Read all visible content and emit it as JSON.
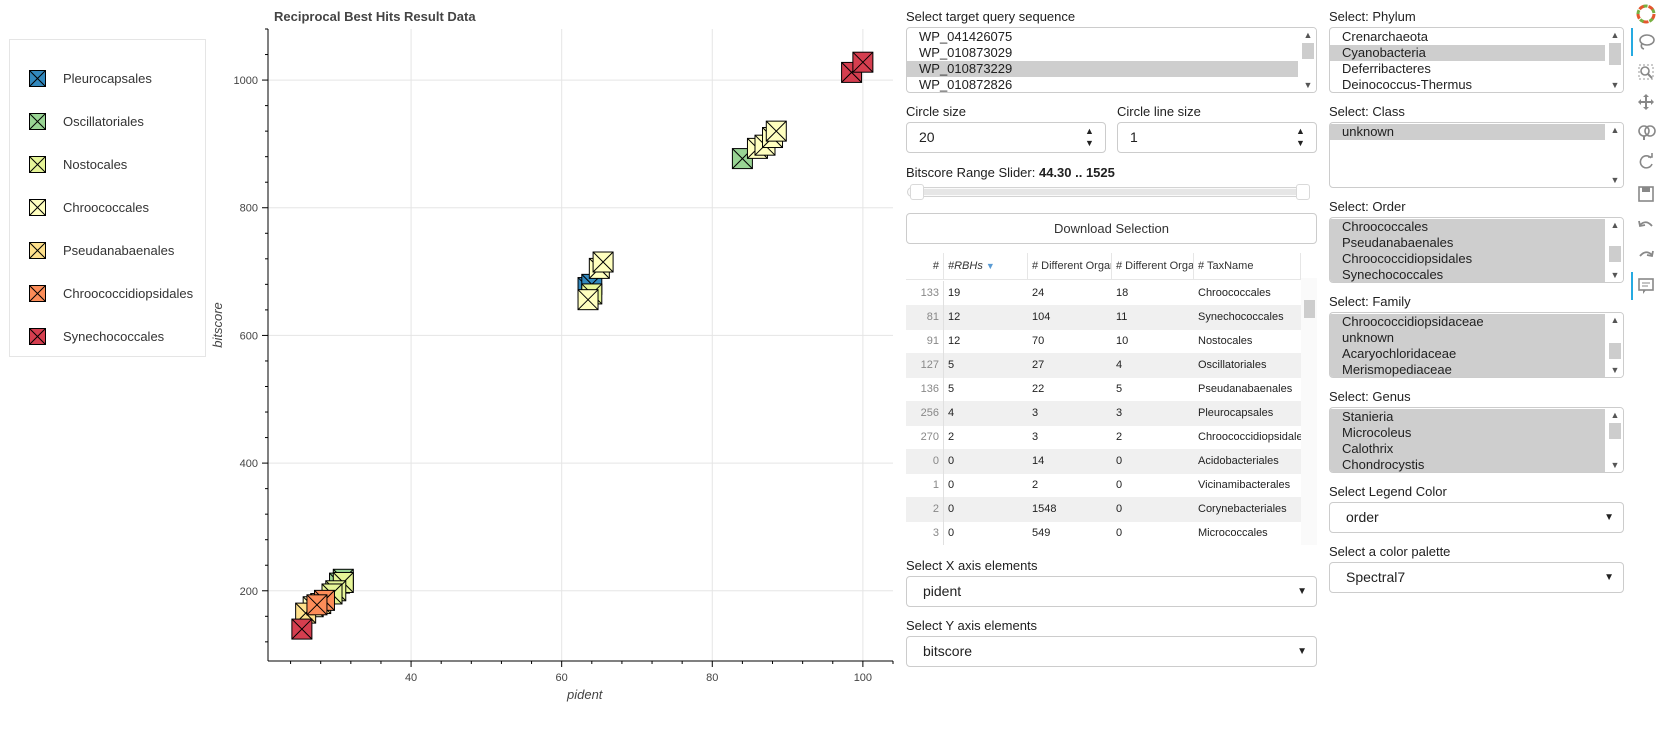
{
  "legend": {
    "items": [
      {
        "label": "Pleurocapsales",
        "color": "#3288bd"
      },
      {
        "label": "Oscillatoriales",
        "color": "#99d594"
      },
      {
        "label": "Nostocales",
        "color": "#e6f598"
      },
      {
        "label": "Chroococcales",
        "color": "#ffffbf"
      },
      {
        "label": "Pseudanabaenales",
        "color": "#fee08b"
      },
      {
        "label": "Chroococcidiopsidales",
        "color": "#fc8d59"
      },
      {
        "label": "Synechococcales",
        "color": "#d53e4f"
      }
    ]
  },
  "chart_data": {
    "type": "scatter",
    "title": "Reciprocal Best Hits Result Data",
    "xlabel": "pident",
    "ylabel": "bitscore",
    "xlim": [
      21,
      104
    ],
    "ylim": [
      90,
      1080
    ],
    "xticks": [
      40,
      60,
      80,
      100
    ],
    "yticks": [
      200,
      400,
      600,
      800,
      1000
    ],
    "marker": "square_x",
    "grid": true,
    "series": [
      {
        "name": "Pleurocapsales",
        "color": "#3288bd",
        "points": [
          [
            63.5,
            675
          ],
          [
            64,
            680
          ]
        ]
      },
      {
        "name": "Oscillatoriales",
        "color": "#99d594",
        "points": [
          [
            84,
            877
          ],
          [
            31,
            218
          ],
          [
            30.5,
            212
          ]
        ]
      },
      {
        "name": "Nostocales",
        "color": "#e6f598",
        "points": [
          [
            31,
            213
          ],
          [
            30,
            200
          ],
          [
            64,
            665
          ],
          [
            29.5,
            195
          ]
        ]
      },
      {
        "name": "Chroococcales",
        "color": "#ffffbf",
        "points": [
          [
            63.5,
            656
          ],
          [
            65,
            705
          ],
          [
            86,
            893
          ],
          [
            87,
            898
          ],
          [
            88,
            910
          ],
          [
            88.5,
            920
          ],
          [
            65.5,
            715
          ],
          [
            27,
            175
          ]
        ]
      },
      {
        "name": "Pseudanabaenales",
        "color": "#fee08b",
        "points": [
          [
            28,
            180
          ],
          [
            26,
            165
          ]
        ]
      },
      {
        "name": "Chroococcidiopsidales",
        "color": "#fc8d59",
        "points": [
          [
            28.5,
            185
          ],
          [
            27.5,
            178
          ]
        ]
      },
      {
        "name": "Synechococcales",
        "color": "#d53e4f",
        "points": [
          [
            98.5,
            1012
          ],
          [
            100,
            1028
          ],
          [
            25.5,
            140
          ]
        ]
      }
    ]
  },
  "query": {
    "label": "Select target query sequence",
    "options": [
      "WP_041426075",
      "WP_010873029",
      "WP_010873229",
      "WP_010872826"
    ],
    "selected": "WP_010873229"
  },
  "circle_size": {
    "label": "Circle size",
    "value": "20"
  },
  "circle_line_size": {
    "label": "Circle line size",
    "value": "1"
  },
  "slider": {
    "label": "Bitscore Range Slider:",
    "value": "44.30 .. 1525"
  },
  "download": {
    "label": "Download Selection"
  },
  "table": {
    "columns": [
      "#",
      "#RBHs",
      "# Different Organ",
      "# Different Organ",
      "# TaxName"
    ],
    "rows": [
      [
        "133",
        "19",
        "24",
        "18",
        "Chroococcales"
      ],
      [
        "81",
        "12",
        "104",
        "11",
        "Synechococcales"
      ],
      [
        "91",
        "12",
        "70",
        "10",
        "Nostocales"
      ],
      [
        "127",
        "5",
        "27",
        "4",
        "Oscillatoriales"
      ],
      [
        "136",
        "5",
        "22",
        "5",
        "Pseudanabaenales"
      ],
      [
        "256",
        "4",
        "3",
        "3",
        "Pleurocapsales"
      ],
      [
        "270",
        "2",
        "3",
        "2",
        "Chroococcidiopsidales"
      ],
      [
        "0",
        "0",
        "14",
        "0",
        "Acidobacteriales"
      ],
      [
        "1",
        "0",
        "2",
        "0",
        "Vicinamibacterales"
      ],
      [
        "2",
        "0",
        "1548",
        "0",
        "Corynebacteriales"
      ],
      [
        "3",
        "0",
        "549",
        "0",
        "Micrococcales"
      ]
    ]
  },
  "x_axis": {
    "label": "Select X axis elements",
    "value": "pident"
  },
  "y_axis": {
    "label": "Select Y axis elements",
    "value": "bitscore"
  },
  "phylum": {
    "label": "Select: Phylum",
    "options": [
      "Crenarchaeota",
      "Cyanobacteria",
      "Deferribacteres",
      "Deinococcus-Thermus"
    ],
    "selected": [
      "Cyanobacteria"
    ]
  },
  "class": {
    "label": "Select: Class",
    "options": [
      "unknown"
    ],
    "selected": [
      "unknown"
    ]
  },
  "order": {
    "label": "Select: Order",
    "options": [
      "Chroococcales",
      "Pseudanabaenales",
      "Chroococcidiopsidales",
      "Synechococcales"
    ],
    "selected": [
      "Chroococcales",
      "Pseudanabaenales",
      "Chroococcidiopsidales",
      "Synechococcales"
    ]
  },
  "family": {
    "label": "Select: Family",
    "options": [
      "Chroococcidiopsidaceae",
      "unknown",
      "Acaryochloridaceae",
      "Merismopediaceae"
    ],
    "selected": [
      "Chroococcidiopsidaceae",
      "unknown",
      "Acaryochloridaceae",
      "Merismopediaceae"
    ]
  },
  "genus": {
    "label": "Select: Genus",
    "options": [
      "Stanieria",
      "Microcoleus",
      "Calothrix",
      "Chondrocystis"
    ],
    "selected": [
      "Stanieria",
      "Microcoleus",
      "Calothrix",
      "Chondrocystis"
    ]
  },
  "legend_color": {
    "label": "Select Legend Color",
    "value": "order"
  },
  "palette": {
    "label": "Select a color palette",
    "value": "Spectral7"
  },
  "toolbar": {
    "tools": [
      "bokeh-logo-icon",
      "lasso-select-icon",
      "box-zoom-icon",
      "pan-icon",
      "wheel-zoom-icon",
      "reset-icon",
      "save-icon",
      "undo-icon",
      "redo-icon",
      "hover-icon"
    ],
    "accent": "#26aae1"
  }
}
